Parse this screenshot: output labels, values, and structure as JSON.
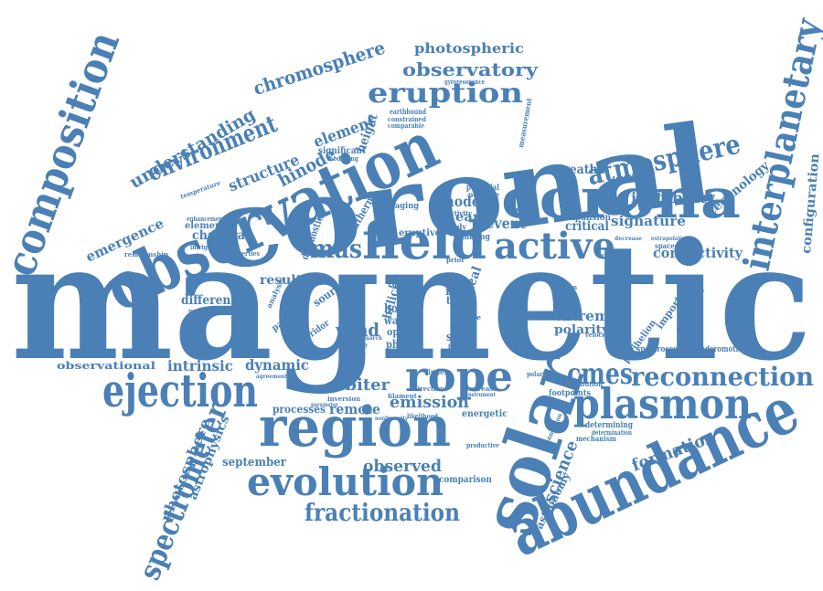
{
  "colors": {
    "word": "#4a80b5",
    "background": "#ffffff"
  },
  "words": {
    "magnetic": "magnetic",
    "coronal": "coronal",
    "observation": "observation",
    "solar": "solar",
    "abundance": "abundance",
    "region": "region",
    "corona": "corona",
    "composition": "composition",
    "interplanetary": "interplanetary",
    "ejection": "ejection",
    "field": "field",
    "plasmon": "plasmon",
    "rope": "rope",
    "evolution": "evolution",
    "active": "active",
    "spectrometer": "spectrometer",
    "eruption": "eruption",
    "atmosphere": "atmosphere",
    "reconnection": "reconnection",
    "environment": "environment",
    "fractionation": "fractionation",
    "cmes": "cmes",
    "mas": "mas",
    "observatory": "observatory",
    "chromosphere": "chromosphere",
    "understanding": "understanding",
    "photospheric": "photospheric",
    "hinode": "hinode",
    "structure": "structure",
    "element": "element",
    "emergence": "emergence",
    "instability": "instability",
    "weather": "weather",
    "technology": "technology",
    "configuration": "configuration",
    "signature": "signature",
    "connectivity": "connectivity",
    "chandra": "chandra",
    "elemental": "elemental",
    "relationship": "relationship",
    "result": "result",
    "different": "different",
    "dynamic": "dynamic",
    "intrinsic": "intrinsic",
    "observational": "observational",
    "orbiter": "orbiter",
    "emission": "emission",
    "processes": "processes",
    "remote": "remote",
    "september": "september",
    "observed": "observed",
    "photosphere": "photosphere",
    "astrophysics": "astrophysics",
    "wind": "wind",
    "event": "event",
    "model": "model",
    "earth": "earth",
    "extreme": "extreme",
    "polarity": "polarity",
    "formation": "formation",
    "science": "science",
    "astronomy": "astronomy",
    "comparison": "comparison",
    "energetic": "energetic",
    "physical": "physical",
    "slow": "slow",
    "helicity": "helicity",
    "flare": "flare",
    "critical": "critical",
    "expansion": "expansion",
    "important": "important",
    "orientation": "orientation",
    "spectroscopic": "spectroscopic",
    "ponderomotive": "ponderomotive",
    "determining": "determining",
    "mechanism": "mechanism",
    "footpoints": "footpoints",
    "distribution": "distribution",
    "perihelion": "perihelion",
    "eruptive": "eruptive",
    "southern": "southern",
    "diagnostic": "diagnostic",
    "source": "source",
    "particle": "particle",
    "corridor": "corridor",
    "evidence": "evidence",
    "phase": "phase",
    "hole": "hole",
    "wave": "wave",
    "open": "open",
    "line": "line",
    "type": "type",
    "space": "space",
    "height": "height",
    "significant": "significant",
    "measurement": "measurement",
    "earthbound": "earthbound",
    "gyroresonance": "gyroresonance",
    "constrained": "constrained",
    "comparable": "comparable",
    "modelling": "modelling",
    "temperature": "temperature",
    "enhancement": "enhancement",
    "intriguing": "intriguing",
    "potential": "potential",
    "passage": "passage",
    "dimming": "dimming",
    "imaging": "imaging",
    "analysis": "analysis",
    "maximum": "maximum",
    "produced": "produced",
    "identifying": "identifying",
    "properties": "properties",
    "inversion": "inversion",
    "direction": "direction",
    "increase": "increase",
    "filament": "filament",
    "likelihood": "likelihood",
    "productive": "productive",
    "spacecraft": "spacecraft",
    "extrapolation": "extrapolation",
    "decrease": "decrease",
    "confined": "confined",
    "velocities": "velocities",
    "polarities": "polarities",
    "connection": "connection",
    "determination": "determination",
    "transient": "transient",
    "merging": "merging",
    "activity": "activity",
    "study": "study",
    "rate": "rate",
    "decay": "decay",
    "close": "close",
    "board": "board",
    "prior": "prior",
    "pattern": "pattern",
    "agreement": "agreement",
    "parameter": "parameter",
    "nonlinearity": "nonlinearity",
    "index": "index",
    "march": "march",
    "instrument": "instrument"
  }
}
